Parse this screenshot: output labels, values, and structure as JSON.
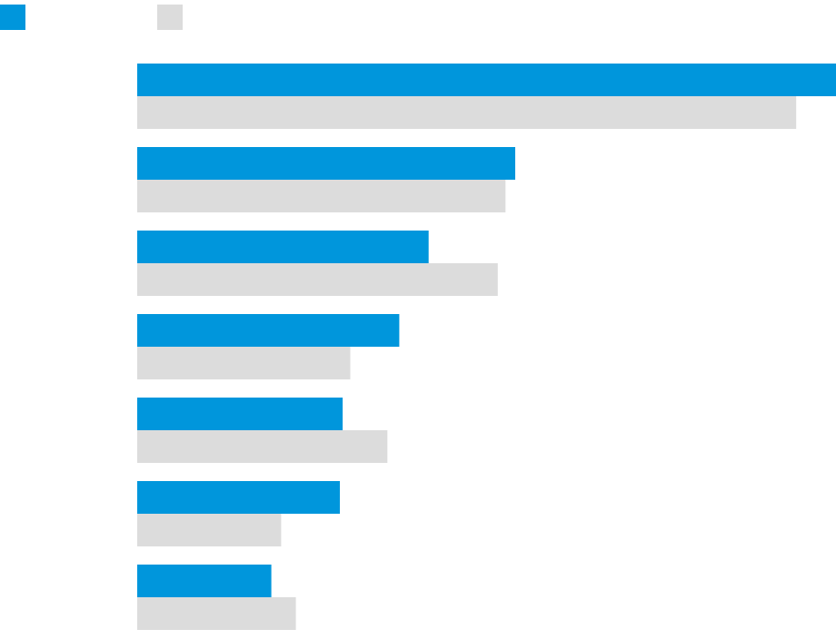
{
  "chart_data": {
    "type": "bar",
    "orientation": "horizontal",
    "title": "",
    "xlabel": "",
    "ylabel": "",
    "categories": [
      "",
      "",
      "",
      "",
      "",
      "",
      ""
    ],
    "series": [
      {
        "color": "#0096dc",
        "values": [
          100,
          54.1,
          41.7,
          37.5,
          29.4,
          29.0,
          19.2
        ]
      },
      {
        "color": "#dcdcdc",
        "values": [
          94.3,
          52.7,
          51.6,
          30.5,
          35.8,
          20.6,
          22.7
        ]
      }
    ],
    "xlim": [
      0,
      100
    ],
    "grid": false,
    "legend": {
      "position": "top-left"
    }
  }
}
